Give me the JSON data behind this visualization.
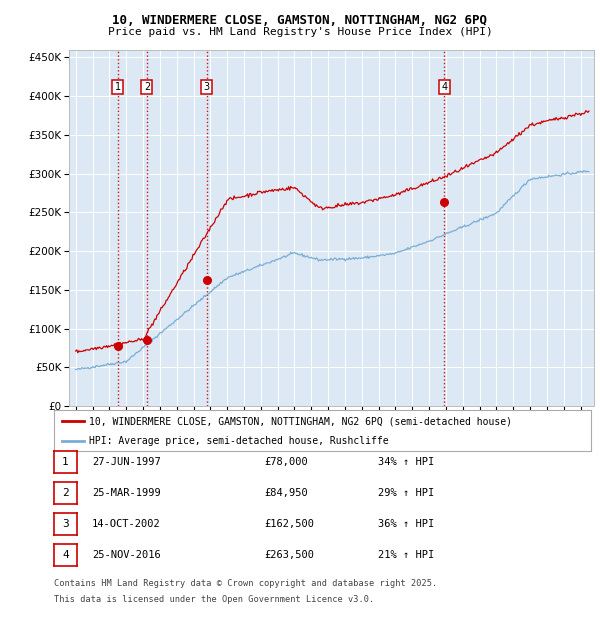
{
  "title_line1": "10, WINDERMERE CLOSE, GAMSTON, NOTTINGHAM, NG2 6PQ",
  "title_line2": "Price paid vs. HM Land Registry's House Price Index (HPI)",
  "plot_bg_color": "#dce9f5",
  "sale_color": "#cc0000",
  "hpi_color": "#7aadd4",
  "sales": [
    {
      "date_num": 1997.49,
      "price": 78000,
      "label": "1"
    },
    {
      "date_num": 1999.23,
      "price": 84950,
      "label": "2"
    },
    {
      "date_num": 2002.79,
      "price": 162500,
      "label": "3"
    },
    {
      "date_num": 2016.9,
      "price": 263500,
      "label": "4"
    }
  ],
  "table_rows": [
    {
      "num": "1",
      "date": "27-JUN-1997",
      "price": "£78,000",
      "hpi": "34% ↑ HPI"
    },
    {
      "num": "2",
      "date": "25-MAR-1999",
      "price": "£84,950",
      "hpi": "29% ↑ HPI"
    },
    {
      "num": "3",
      "date": "14-OCT-2002",
      "price": "£162,500",
      "hpi": "36% ↑ HPI"
    },
    {
      "num": "4",
      "date": "25-NOV-2016",
      "price": "£263,500",
      "hpi": "21% ↑ HPI"
    }
  ],
  "legend_line1": "10, WINDERMERE CLOSE, GAMSTON, NOTTINGHAM, NG2 6PQ (semi-detached house)",
  "legend_line2": "HPI: Average price, semi-detached house, Rushcliffe",
  "footnote_line1": "Contains HM Land Registry data © Crown copyright and database right 2025.",
  "footnote_line2": "This data is licensed under the Open Government Licence v3.0.",
  "ylim": [
    0,
    460000
  ],
  "xlim_start": 1994.6,
  "xlim_end": 2025.8
}
